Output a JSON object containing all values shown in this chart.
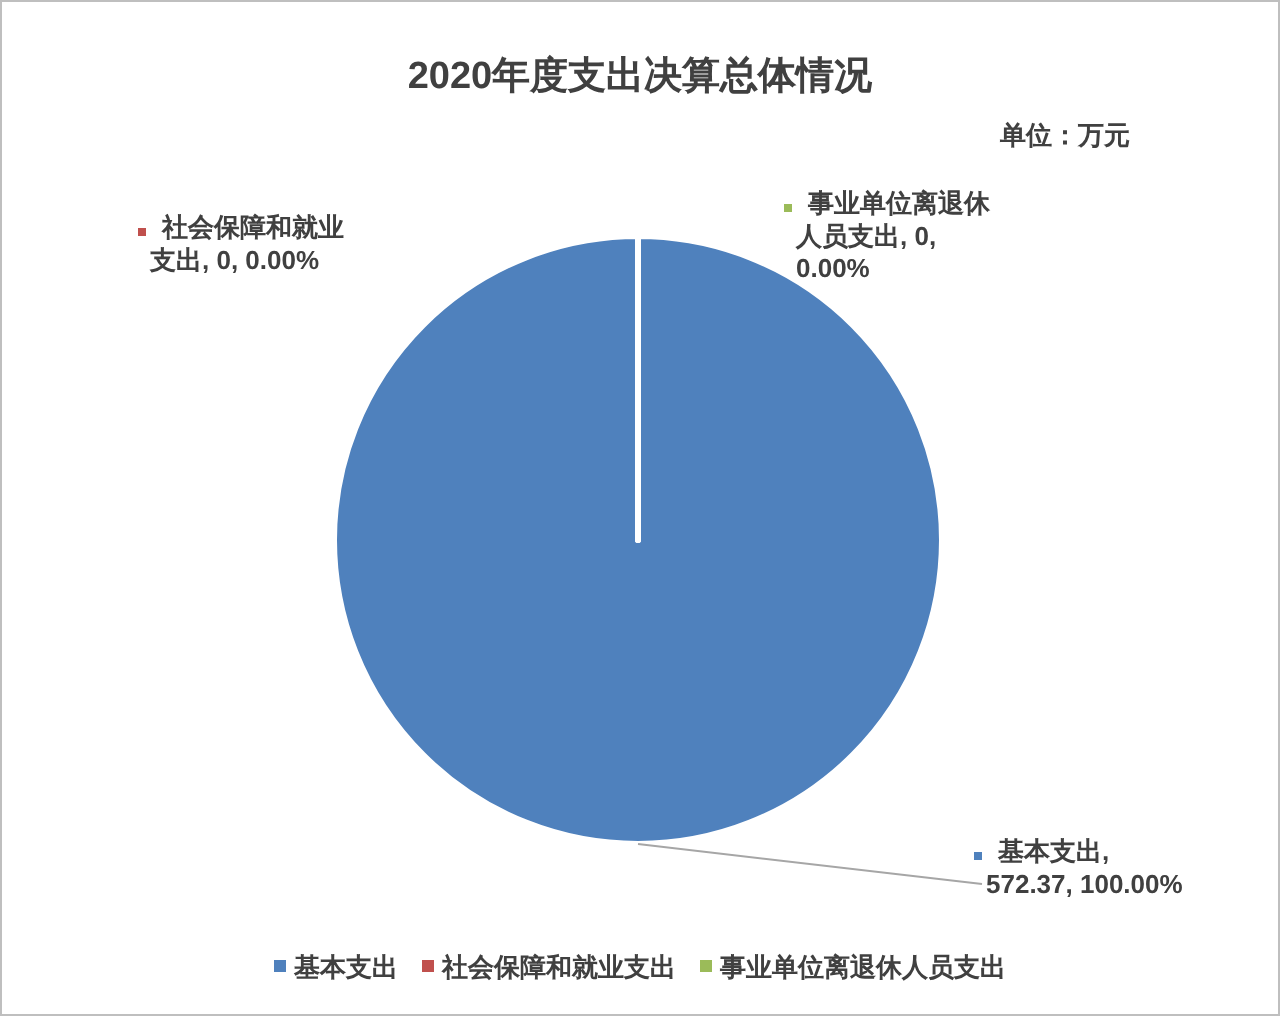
{
  "chart_data": {
    "type": "pie",
    "title": "2020年度支出决算总体情况",
    "subtitle": "单位：万元",
    "categories": [
      "基本支出",
      "社会保障和就业支出",
      "事业单位离退休人员支出"
    ],
    "values": [
      572.37,
      0,
      0
    ],
    "colors": [
      "#4f81bd",
      "#c0504d",
      "#9bbb59"
    ],
    "value_labels": [
      "基本支出, 572.37, 100.00%",
      "社会保障和就业支出, 0, 0.00%",
      "事业单位离退休人员支出, 0, 0.00%"
    ],
    "legend": "bottom"
  }
}
